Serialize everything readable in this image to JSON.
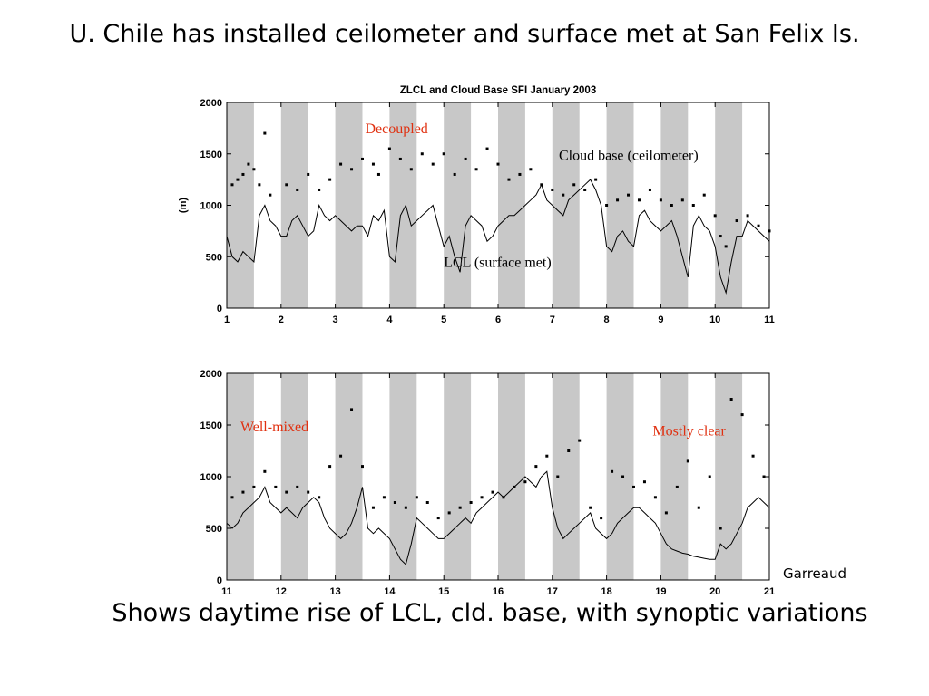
{
  "slide": {
    "title": "U. Chile has installed ceilometer and surface met at San Felix Is.",
    "footer": "Shows daytime rise of LCL, cld. base, with synoptic variations",
    "credit": "Garreaud"
  },
  "colors": {
    "shading": "#c8c8c8",
    "annotation_red": "#e03010",
    "annotation_black": "#000000",
    "series": "#000000"
  },
  "chart_data": [
    {
      "type": "line",
      "title": "ZLCL and Cloud Base SFI January 2003",
      "xlabel": "",
      "ylabel": "(m)",
      "xlim": [
        1,
        11
      ],
      "ylim": [
        0,
        2000
      ],
      "xticks": [
        1,
        2,
        3,
        4,
        5,
        6,
        7,
        8,
        9,
        10,
        11
      ],
      "yticks": [
        0,
        500,
        1000,
        1500,
        2000
      ],
      "grid": false,
      "shaded_intervals": [
        [
          1.0,
          1.5
        ],
        [
          2.0,
          2.5
        ],
        [
          3.0,
          3.5
        ],
        [
          4.0,
          4.5
        ],
        [
          5.0,
          5.5
        ],
        [
          6.0,
          6.5
        ],
        [
          7.0,
          7.5
        ],
        [
          8.0,
          8.5
        ],
        [
          9.0,
          9.5
        ],
        [
          10.0,
          10.5
        ]
      ],
      "annotations": [
        {
          "text": "Decoupled",
          "x": 3.55,
          "y": 1700,
          "color": "red"
        },
        {
          "text": "Cloud base (ceilometer)",
          "x": 7.12,
          "y": 1440,
          "color": "black"
        },
        {
          "text": "LCL (surface met)",
          "x": 5.0,
          "y": 400,
          "color": "black"
        }
      ],
      "series": [
        {
          "style": "line",
          "x": [
            1.0,
            1.1,
            1.2,
            1.3,
            1.4,
            1.5,
            1.6,
            1.7,
            1.8,
            1.9,
            2.0,
            2.1,
            2.2,
            2.3,
            2.4,
            2.5,
            2.6,
            2.7,
            2.8,
            2.9,
            3.0,
            3.1,
            3.2,
            3.3,
            3.4,
            3.5,
            3.6,
            3.7,
            3.8,
            3.9,
            4.0,
            4.1,
            4.2,
            4.3,
            4.4,
            4.5,
            4.6,
            4.7,
            4.8,
            4.9,
            5.0,
            5.1,
            5.2,
            5.3,
            5.4,
            5.5,
            5.6,
            5.7,
            5.8,
            5.9,
            6.0,
            6.1,
            6.2,
            6.3,
            6.4,
            6.5,
            6.6,
            6.7,
            6.8,
            6.9,
            7.0,
            7.1,
            7.2,
            7.3,
            7.4,
            7.5,
            7.6,
            7.7,
            7.8,
            7.9,
            8.0,
            8.1,
            8.2,
            8.3,
            8.4,
            8.5,
            8.6,
            8.7,
            8.8,
            8.9,
            9.0,
            9.1,
            9.2,
            9.3,
            9.4,
            9.5,
            9.6,
            9.7,
            9.8,
            9.9,
            10.0,
            10.1,
            10.2,
            10.3,
            10.4,
            10.5,
            10.6,
            10.7,
            10.8,
            10.9,
            11.0
          ],
          "y": [
            700,
            500,
            450,
            550,
            500,
            450,
            900,
            1000,
            850,
            800,
            700,
            700,
            850,
            900,
            800,
            700,
            750,
            1000,
            900,
            850,
            900,
            850,
            800,
            750,
            800,
            800,
            700,
            900,
            850,
            950,
            500,
            450,
            900,
            1000,
            800,
            850,
            900,
            950,
            1000,
            800,
            600,
            700,
            500,
            350,
            800,
            900,
            850,
            800,
            650,
            700,
            800,
            850,
            900,
            900,
            950,
            1000,
            1050,
            1100,
            1200,
            1050,
            1000,
            950,
            900,
            1050,
            1100,
            1150,
            1200,
            1250,
            1150,
            1000,
            600,
            550,
            700,
            750,
            650,
            600,
            900,
            950,
            850,
            800,
            750,
            800,
            850,
            700,
            500,
            300,
            800,
            900,
            800,
            750,
            600,
            300,
            150,
            450,
            700,
            700,
            850,
            800,
            750,
            700,
            650
          ]
        },
        {
          "style": "dots",
          "x": [
            1.1,
            1.2,
            1.3,
            1.4,
            1.5,
            1.6,
            1.7,
            1.8,
            2.1,
            2.3,
            2.5,
            2.7,
            2.9,
            3.1,
            3.3,
            3.5,
            3.7,
            3.8,
            4.0,
            4.2,
            4.4,
            4.6,
            4.8,
            5.0,
            5.2,
            5.4,
            5.6,
            5.8,
            6.0,
            6.2,
            6.4,
            6.6,
            6.8,
            7.0,
            7.2,
            7.4,
            7.6,
            7.8,
            8.0,
            8.2,
            8.4,
            8.6,
            8.8,
            9.0,
            9.2,
            9.4,
            9.6,
            9.8,
            10.0,
            10.1,
            10.2,
            10.4,
            10.6,
            10.8,
            11.0
          ],
          "y": [
            1200,
            1250,
            1300,
            1400,
            1350,
            1200,
            1700,
            1100,
            1200,
            1150,
            1300,
            1150,
            1250,
            1400,
            1350,
            1450,
            1400,
            1300,
            1550,
            1450,
            1350,
            1500,
            1400,
            1500,
            1300,
            1450,
            1350,
            1550,
            1400,
            1250,
            1300,
            1350,
            1200,
            1150,
            1100,
            1200,
            1150,
            1250,
            1000,
            1050,
            1100,
            1050,
            1150,
            1050,
            1000,
            1050,
            1000,
            1100,
            900,
            700,
            600,
            850,
            900,
            800,
            750
          ]
        }
      ]
    },
    {
      "type": "line",
      "title": "",
      "xlabel": "",
      "ylabel": "",
      "xlim": [
        11,
        21
      ],
      "ylim": [
        0,
        2000
      ],
      "xticks": [
        11,
        12,
        13,
        14,
        15,
        16,
        17,
        18,
        19,
        20,
        21
      ],
      "yticks": [
        0,
        500,
        1000,
        1500,
        2000
      ],
      "grid": false,
      "shaded_intervals": [
        [
          11.0,
          11.5
        ],
        [
          12.0,
          12.5
        ],
        [
          13.0,
          13.5
        ],
        [
          14.0,
          14.5
        ],
        [
          15.0,
          15.5
        ],
        [
          16.0,
          16.5
        ],
        [
          17.0,
          17.5
        ],
        [
          18.0,
          18.5
        ],
        [
          19.0,
          19.5
        ],
        [
          20.0,
          20.5
        ]
      ],
      "annotations": [
        {
          "text": "Well-mixed",
          "x": 11.25,
          "y": 1440,
          "color": "red"
        },
        {
          "text": "Mostly clear",
          "x": 18.85,
          "y": 1400,
          "color": "red"
        }
      ],
      "series": [
        {
          "style": "line",
          "x": [
            11.0,
            11.1,
            11.2,
            11.3,
            11.4,
            11.5,
            11.6,
            11.7,
            11.8,
            11.9,
            12.0,
            12.1,
            12.2,
            12.3,
            12.4,
            12.5,
            12.6,
            12.7,
            12.8,
            12.9,
            13.0,
            13.1,
            13.2,
            13.3,
            13.4,
            13.5,
            13.6,
            13.7,
            13.8,
            13.9,
            14.0,
            14.1,
            14.2,
            14.3,
            14.4,
            14.5,
            14.6,
            14.7,
            14.8,
            14.9,
            15.0,
            15.1,
            15.2,
            15.3,
            15.4,
            15.5,
            15.6,
            15.7,
            15.8,
            15.9,
            16.0,
            16.1,
            16.2,
            16.3,
            16.4,
            16.5,
            16.6,
            16.7,
            16.8,
            16.9,
            17.0,
            17.1,
            17.2,
            17.3,
            17.4,
            17.5,
            17.6,
            17.7,
            17.8,
            17.9,
            18.0,
            18.1,
            18.2,
            18.3,
            18.4,
            18.5,
            18.6,
            18.7,
            18.8,
            18.9,
            19.0,
            19.1,
            19.2,
            19.3,
            19.4,
            19.5,
            19.6,
            19.7,
            19.8,
            19.9,
            20.0,
            20.1,
            20.2,
            20.3,
            20.4,
            20.5,
            20.6,
            20.7,
            20.8,
            20.9,
            21.0
          ],
          "y": [
            550,
            500,
            550,
            650,
            700,
            750,
            800,
            900,
            750,
            700,
            650,
            700,
            650,
            600,
            700,
            750,
            800,
            750,
            600,
            500,
            450,
            400,
            450,
            550,
            700,
            900,
            500,
            450,
            500,
            450,
            400,
            300,
            200,
            150,
            350,
            600,
            550,
            500,
            450,
            400,
            400,
            450,
            500,
            550,
            600,
            550,
            650,
            700,
            750,
            800,
            850,
            800,
            850,
            900,
            950,
            1000,
            950,
            900,
            1000,
            1050,
            700,
            500,
            400,
            450,
            500,
            550,
            600,
            650,
            500,
            450,
            400,
            450,
            550,
            600,
            650,
            700,
            700,
            650,
            600,
            550,
            450,
            350,
            300,
            280,
            260,
            250,
            230,
            220,
            210,
            200,
            200,
            350,
            300,
            350,
            450,
            550,
            700,
            750,
            800,
            750,
            700
          ]
        },
        {
          "style": "dots",
          "x": [
            11.1,
            11.3,
            11.5,
            11.7,
            11.9,
            12.1,
            12.3,
            12.5,
            12.7,
            12.9,
            13.1,
            13.3,
            13.5,
            13.7,
            13.9,
            14.1,
            14.3,
            14.5,
            14.7,
            14.9,
            15.1,
            15.3,
            15.5,
            15.7,
            15.9,
            16.1,
            16.3,
            16.5,
            16.7,
            16.9,
            17.1,
            17.3,
            17.5,
            17.7,
            17.9,
            18.1,
            18.3,
            18.5,
            18.7,
            18.9,
            19.1,
            19.3,
            19.5,
            19.7,
            19.9,
            20.1,
            20.3,
            20.5,
            20.7,
            20.9
          ],
          "y": [
            800,
            850,
            900,
            1050,
            900,
            850,
            900,
            850,
            800,
            1100,
            1200,
            1650,
            1100,
            700,
            800,
            750,
            700,
            800,
            750,
            600,
            650,
            700,
            750,
            800,
            850,
            800,
            900,
            950,
            1100,
            1200,
            1000,
            1250,
            1350,
            700,
            600,
            1050,
            1000,
            900,
            950,
            800,
            650,
            900,
            1150,
            700,
            1000,
            500,
            1750,
            1600,
            1200,
            1000
          ]
        }
      ]
    }
  ]
}
